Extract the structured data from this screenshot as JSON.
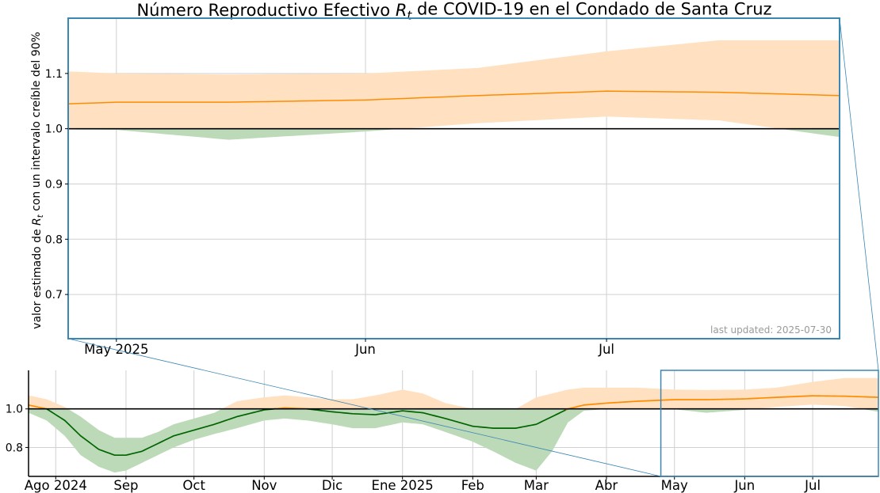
{
  "chart_data": {
    "type": "area",
    "title": "Número Reproductivo Efectivo R_t de COVID-19 en el Condado de Santa Cruz",
    "title_parts": {
      "prefix": "Número Reproductivo Efectivo ",
      "symbol": "R",
      "subscript": "t",
      "suffix": " de COVID-19 en el Condado de Santa Cruz"
    },
    "ylabel": "valor estimado de R_t con un intervalo creíble del 90%",
    "ylabel_parts": {
      "prefix": "valor estimado de ",
      "symbol": "R",
      "subscript": "t",
      "suffix": " con un intervalo creíble del 90%"
    },
    "annotation": "last updated: 2025-07-30",
    "reference_line": 1.0,
    "colors": {
      "above": "#ff8c00",
      "below": "#006400",
      "above_band": "#ffe0c0",
      "below_band": "#bcd9b8",
      "zoom_box": "#3a86b4"
    },
    "inset": {
      "x_range": [
        "2025-04-25",
        "2025-07-30"
      ],
      "ylim": [
        0.62,
        1.2
      ],
      "y_ticks": [
        0.7,
        0.8,
        0.9,
        1.0,
        1.1
      ],
      "y_tick_labels": [
        "0.7",
        "0.8",
        "0.9",
        "1.0",
        "1.1"
      ],
      "x_ticks": [
        "2025-05-01",
        "2025-06-01",
        "2025-07-01"
      ],
      "x_tick_labels": [
        "May 2025",
        "Jun",
        "Jul"
      ],
      "grid": true
    },
    "main": {
      "x_range": [
        "2024-07-20",
        "2025-07-30"
      ],
      "ylim": [
        0.65,
        1.2
      ],
      "y_ticks": [
        0.8,
        1.0
      ],
      "y_tick_labels": [
        "0.8",
        "1.0"
      ],
      "x_ticks": [
        "2024-08-01",
        "2024-09-01",
        "2024-10-01",
        "2024-11-01",
        "2024-12-01",
        "2025-01-01",
        "2025-02-01",
        "2025-03-01",
        "2025-04-01",
        "2025-05-01",
        "2025-06-01",
        "2025-07-01"
      ],
      "x_tick_labels": [
        "Ago 2024",
        "Sep",
        "Oct",
        "Nov",
        "Dic",
        "Ene 2025",
        "Feb",
        "Mar",
        "Abr",
        "May",
        "Jun",
        "Jul"
      ],
      "grid": true,
      "zoom_window": [
        "2025-04-25",
        "2025-07-30"
      ]
    },
    "series": [
      {
        "x": [
          "2024-07-20",
          "2024-07-28",
          "2024-08-05",
          "2024-08-12",
          "2024-08-20",
          "2024-08-27",
          "2024-09-01",
          "2024-09-08",
          "2024-09-15",
          "2024-09-22",
          "2024-10-01",
          "2024-10-10",
          "2024-10-20",
          "2024-11-01",
          "2024-11-10",
          "2024-11-20",
          "2024-12-01",
          "2024-12-10",
          "2024-12-20",
          "2025-01-01",
          "2025-01-10",
          "2025-01-20",
          "2025-02-01",
          "2025-02-10",
          "2025-02-20",
          "2025-03-01",
          "2025-03-08",
          "2025-03-15",
          "2025-03-22",
          "2025-04-01",
          "2025-04-15",
          "2025-05-01",
          "2025-05-15",
          "2025-06-01",
          "2025-06-15",
          "2025-07-01",
          "2025-07-15",
          "2025-07-30"
        ],
        "y": [
          1.02,
          1.0,
          0.94,
          0.86,
          0.79,
          0.76,
          0.76,
          0.78,
          0.82,
          0.86,
          0.89,
          0.92,
          0.96,
          0.995,
          1.005,
          1.0,
          0.985,
          0.975,
          0.97,
          0.99,
          0.98,
          0.95,
          0.91,
          0.9,
          0.9,
          0.92,
          0.96,
          1.0,
          1.02,
          1.03,
          1.04,
          1.048,
          1.048,
          1.052,
          1.06,
          1.068,
          1.066,
          1.06
        ],
        "lower": [
          0.98,
          0.94,
          0.86,
          0.76,
          0.7,
          0.67,
          0.68,
          0.72,
          0.76,
          0.8,
          0.84,
          0.87,
          0.9,
          0.94,
          0.95,
          0.94,
          0.92,
          0.9,
          0.9,
          0.93,
          0.92,
          0.88,
          0.83,
          0.78,
          0.72,
          0.68,
          0.78,
          0.93,
          0.99,
          1.0,
          1.0,
          0.998,
          0.98,
          0.995,
          1.01,
          1.022,
          1.015,
          0.985
        ],
        "upper": [
          1.07,
          1.05,
          1.01,
          0.96,
          0.89,
          0.85,
          0.85,
          0.85,
          0.88,
          0.92,
          0.95,
          0.98,
          1.04,
          1.06,
          1.07,
          1.06,
          1.05,
          1.05,
          1.07,
          1.1,
          1.08,
          1.03,
          1.0,
          1.0,
          1.0,
          1.06,
          1.08,
          1.1,
          1.11,
          1.11,
          1.11,
          1.1,
          1.098,
          1.1,
          1.11,
          1.14,
          1.16,
          1.16
        ]
      }
    ]
  }
}
